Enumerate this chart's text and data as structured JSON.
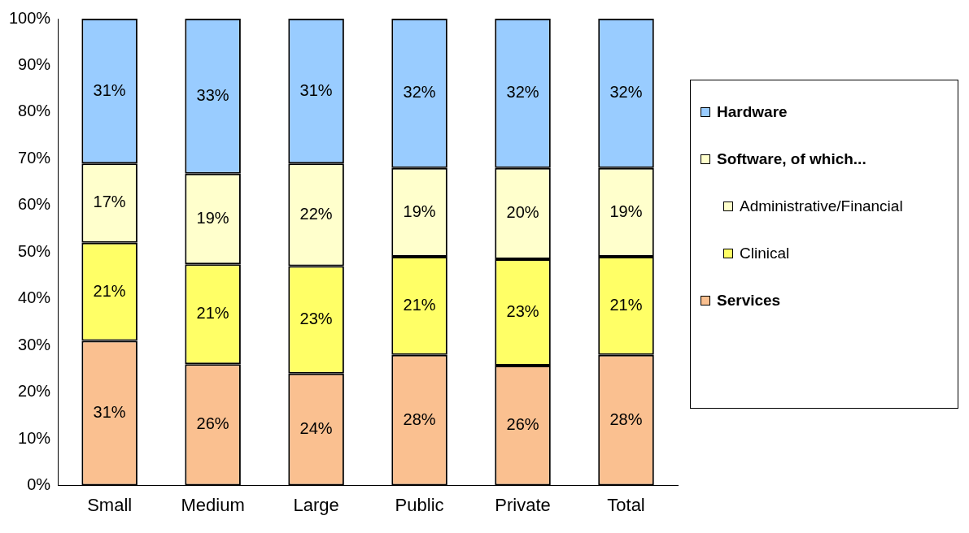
{
  "chart_data": {
    "type": "bar",
    "stacked": true,
    "categories": [
      "Small",
      "Medium",
      "Large",
      "Public",
      "Private",
      "Total"
    ],
    "series": [
      {
        "name": "Services",
        "color": "#fac090",
        "values": [
          31,
          26,
          24,
          28,
          25.7,
          28
        ],
        "value_labels": [
          "31%",
          "26%",
          "24%",
          "28%",
          "26%",
          "28%"
        ]
      },
      {
        "name": "Clinical",
        "color": "#ffff66",
        "values": [
          21,
          21.4,
          23,
          21,
          22.8,
          21
        ],
        "value_labels": [
          "21%",
          "21%",
          "23%",
          "21%",
          "23%",
          "21%"
        ]
      },
      {
        "name": "Administrative/Financial",
        "color": "#ffffcc",
        "values": [
          17,
          19.4,
          22,
          19,
          19.5,
          19
        ],
        "value_labels": [
          "17%",
          "19%",
          "22%",
          "19%",
          "20%",
          "19%"
        ]
      },
      {
        "name": "Hardware",
        "color": "#99ccff",
        "values": [
          31,
          33.2,
          31,
          32,
          32,
          32
        ],
        "value_labels": [
          "31%",
          "33%",
          "31%",
          "32%",
          "32%",
          "32%"
        ]
      }
    ],
    "legend_title": "Software, of which...",
    "ylim": [
      0,
      100
    ],
    "yticks": [
      {
        "value": 0,
        "label": "0%"
      },
      {
        "value": 10,
        "label": "10%"
      },
      {
        "value": 20,
        "label": "20%"
      },
      {
        "value": 30,
        "label": "30%"
      },
      {
        "value": 40,
        "label": "40%"
      },
      {
        "value": 50,
        "label": "50%"
      },
      {
        "value": 60,
        "label": "60%"
      },
      {
        "value": 70,
        "label": "70%"
      },
      {
        "value": 80,
        "label": "80%"
      },
      {
        "value": 90,
        "label": "90%"
      },
      {
        "value": 100,
        "label": "100%"
      }
    ],
    "grid": false,
    "legend": "right"
  }
}
